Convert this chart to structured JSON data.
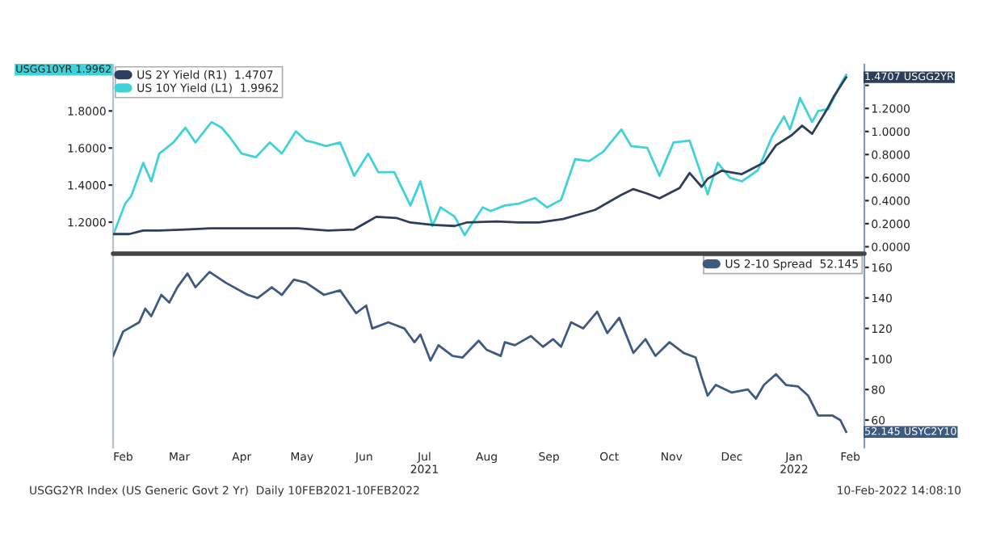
{
  "chart_data": [
    {
      "type": "line",
      "xlim": [
        "2021-02-10",
        "2022-02-19"
      ],
      "ylim": [
        1.03,
        2.05
      ],
      "y2lim": [
        -0.06,
        1.58
      ],
      "tick_labels": "y",
      "legend": "top left",
      "annotations": [
        "USGG10YR 1.9962"
      ],
      "yticks": [
        {
          "value": 1.2,
          "label": "1.2000"
        },
        {
          "value": 1.4,
          "label": "1.4000"
        },
        {
          "value": 1.6,
          "label": "1.6000"
        },
        {
          "value": 1.8,
          "label": "1.8000"
        }
      ],
      "y2ticks": [
        {
          "value": 0,
          "label": "0.0000"
        },
        {
          "value": 0.2,
          "label": "0.2000"
        },
        {
          "value": 0.4,
          "label": "0.4000"
        },
        {
          "value": 0.6,
          "label": "0.6000"
        },
        {
          "value": 0.8,
          "label": "0.8000"
        },
        {
          "value": 1.0,
          "label": "1.0000"
        },
        {
          "value": 1.2,
          "label": "1.2000"
        },
        {
          "value": 1.4,
          "label": null
        }
      ],
      "series": [
        {
          "name": "US 2Y Yield (R1)  1.4707",
          "color": "#2b3f5c",
          "axis": "y2",
          "x": [
            "2021-02-10",
            "2021-02-18",
            "2021-02-25",
            "2021-03-05",
            "2021-03-18",
            "2021-03-31",
            "2021-04-15",
            "2021-04-30",
            "2021-05-13",
            "2021-05-28",
            "2021-06-10",
            "2021-06-16",
            "2021-06-21",
            "2021-07-01",
            "2021-07-08",
            "2021-07-19",
            "2021-07-30",
            "2021-08-05",
            "2021-08-20",
            "2021-08-31",
            "2021-09-10",
            "2021-09-22",
            "2021-09-30",
            "2021-10-08",
            "2021-10-21",
            "2021-10-27",
            "2021-11-03",
            "2021-11-09",
            "2021-11-19",
            "2021-11-24",
            "2021-11-30",
            "2021-12-03",
            "2021-12-10",
            "2021-12-20",
            "2021-12-31",
            "2022-01-06",
            "2022-01-14",
            "2022-01-19",
            "2022-01-24",
            "2022-01-31",
            "2022-02-04",
            "2022-02-10"
          ],
          "values": [
            0.11,
            0.11,
            0.14,
            0.14,
            0.15,
            0.16,
            0.16,
            0.16,
            0.16,
            0.14,
            0.15,
            0.21,
            0.26,
            0.25,
            0.21,
            0.19,
            0.18,
            0.21,
            0.22,
            0.21,
            0.21,
            0.24,
            0.28,
            0.32,
            0.45,
            0.5,
            0.46,
            0.42,
            0.51,
            0.64,
            0.52,
            0.59,
            0.66,
            0.63,
            0.73,
            0.88,
            0.97,
            1.05,
            0.98,
            1.18,
            1.31,
            1.4707
          ],
          "value_labels": [
            null,
            null,
            null,
            null,
            null,
            null,
            null,
            null,
            null,
            null,
            null,
            null,
            null,
            null,
            null,
            null,
            null,
            null,
            null,
            null,
            null,
            null,
            null,
            null,
            null,
            null,
            null,
            null,
            null,
            null,
            null,
            null,
            null,
            null,
            null,
            null,
            null,
            null,
            null,
            null,
            null,
            "1.4707 USGG2YR"
          ]
        },
        {
          "name": "US 10Y Yield (L1)  1.9962",
          "color": "#3fd3d9",
          "x": [
            "2021-02-10",
            "2021-02-16",
            "2021-02-19",
            "2021-02-25",
            "2021-03-01",
            "2021-03-05",
            "2021-03-12",
            "2021-03-18",
            "2021-03-23",
            "2021-03-31",
            "2021-04-05",
            "2021-04-09",
            "2021-04-15",
            "2021-04-22",
            "2021-04-29",
            "2021-05-05",
            "2021-05-12",
            "2021-05-17",
            "2021-05-21",
            "2021-05-27",
            "2021-06-03",
            "2021-06-10",
            "2021-06-17",
            "2021-06-22",
            "2021-06-30",
            "2021-07-08",
            "2021-07-13",
            "2021-07-19",
            "2021-07-23",
            "2021-07-30",
            "2021-08-04",
            "2021-08-13",
            "2021-08-17",
            "2021-08-24",
            "2021-08-31",
            "2021-09-08",
            "2021-09-14",
            "2021-09-21",
            "2021-09-28",
            "2021-10-05",
            "2021-10-12",
            "2021-10-21",
            "2021-10-26",
            "2021-11-03",
            "2021-11-09",
            "2021-11-16",
            "2021-11-24",
            "2021-11-30",
            "2021-12-03",
            "2021-12-08",
            "2021-12-14",
            "2021-12-20",
            "2021-12-28",
            "2022-01-04",
            "2022-01-10",
            "2022-01-13",
            "2022-01-18",
            "2022-01-24",
            "2022-01-27",
            "2022-02-01",
            "2022-02-08",
            "2022-02-10"
          ],
          "values": [
            1.13,
            1.3,
            1.34,
            1.52,
            1.42,
            1.57,
            1.63,
            1.71,
            1.63,
            1.74,
            1.71,
            1.66,
            1.57,
            1.55,
            1.63,
            1.57,
            1.69,
            1.64,
            1.63,
            1.61,
            1.63,
            1.45,
            1.57,
            1.47,
            1.47,
            1.29,
            1.42,
            1.18,
            1.28,
            1.23,
            1.13,
            1.28,
            1.26,
            1.29,
            1.3,
            1.33,
            1.28,
            1.32,
            1.54,
            1.53,
            1.58,
            1.7,
            1.61,
            1.6,
            1.45,
            1.63,
            1.64,
            1.45,
            1.35,
            1.52,
            1.44,
            1.42,
            1.48,
            1.66,
            1.77,
            1.7,
            1.87,
            1.74,
            1.8,
            1.81,
            1.96,
            1.9962
          ],
          "value_labels": [
            null,
            null,
            null,
            null,
            null,
            null,
            null,
            null,
            null,
            null,
            null,
            null,
            null,
            null,
            null,
            null,
            null,
            null,
            null,
            null,
            null,
            null,
            null,
            null,
            null,
            null,
            null,
            null,
            null,
            null,
            null,
            null,
            null,
            null,
            null,
            null,
            null,
            null,
            null,
            null,
            null,
            null,
            null,
            null,
            null,
            null,
            null,
            null,
            null,
            null,
            null,
            null,
            null,
            null,
            null,
            null,
            null,
            null,
            null,
            null,
            null,
            null
          ]
        }
      ]
    },
    {
      "type": "line",
      "xlim": [
        "2021-02-10",
        "2022-02-19"
      ],
      "y2lim": [
        42,
        169
      ],
      "legend": "top right",
      "xticks": [
        {
          "value": "2021-02-15",
          "label": "Feb"
        },
        {
          "value": "2021-03-15",
          "label": "Mar"
        },
        {
          "value": "2021-04-15",
          "label": "Apr"
        },
        {
          "value": "2021-05-15",
          "label": "May"
        },
        {
          "value": "2021-06-15",
          "label": "Jun"
        },
        {
          "value": "2021-07-15",
          "label": "Jul\n2021"
        },
        {
          "value": "2021-08-15",
          "label": "Aug"
        },
        {
          "value": "2021-09-15",
          "label": "Sep"
        },
        {
          "value": "2021-10-15",
          "label": "Oct"
        },
        {
          "value": "2021-11-15",
          "label": "Nov"
        },
        {
          "value": "2021-12-15",
          "label": "Dec"
        },
        {
          "value": "2022-01-15",
          "label": "Jan\n2022"
        },
        {
          "value": "2022-02-12",
          "label": "Feb"
        }
      ],
      "y2ticks": [
        60,
        80,
        100,
        120,
        140,
        160
      ],
      "annotations": [
        "USGG2YR Index (US Generic Govt 2 Yr)  Daily 10FEB2021-10FEB2022",
        "10-Feb-2022 14:08:10"
      ],
      "series": [
        {
          "name": "US 2-10 Spread  52.145",
          "color": "#3d5a80",
          "axis": "y2",
          "x": [
            "2021-02-10",
            "2021-02-15",
            "2021-02-23",
            "2021-02-26",
            "2021-03-01",
            "2021-03-06",
            "2021-03-10",
            "2021-03-14",
            "2021-03-19",
            "2021-03-23",
            "2021-03-30",
            "2021-04-07",
            "2021-04-18",
            "2021-04-23",
            "2021-04-30",
            "2021-05-05",
            "2021-05-11",
            "2021-05-17",
            "2021-05-26",
            "2021-06-03",
            "2021-06-11",
            "2021-06-16",
            "2021-06-19",
            "2021-06-27",
            "2021-07-05",
            "2021-07-10",
            "2021-07-13",
            "2021-07-18",
            "2021-07-22",
            "2021-07-29",
            "2021-08-03",
            "2021-08-11",
            "2021-08-15",
            "2021-08-22",
            "2021-08-24",
            "2021-08-29",
            "2021-09-06",
            "2021-09-12",
            "2021-09-17",
            "2021-09-21",
            "2021-09-26",
            "2021-10-02",
            "2021-10-09",
            "2021-10-14",
            "2021-10-20",
            "2021-10-27",
            "2021-11-02",
            "2021-11-07",
            "2021-11-14",
            "2021-11-21",
            "2021-11-27",
            "2021-11-30",
            "2021-12-03",
            "2021-12-07",
            "2021-12-15",
            "2021-12-23",
            "2021-12-27",
            "2021-12-31",
            "2022-01-06",
            "2022-01-11",
            "2022-01-17",
            "2022-01-22",
            "2022-01-27",
            "2022-02-03",
            "2022-02-07",
            "2022-02-10"
          ],
          "values": [
            102,
            118,
            124,
            133,
            128,
            142,
            137,
            147,
            156,
            147,
            157,
            150,
            142,
            140,
            147,
            142,
            152,
            150,
            142,
            145,
            130,
            135,
            120,
            124,
            120,
            111,
            116,
            99,
            109,
            102,
            101,
            112,
            106,
            102,
            111,
            109,
            115,
            108,
            113,
            108,
            124,
            120,
            131,
            117,
            127,
            104,
            113,
            102,
            111,
            104,
            101,
            88,
            76,
            83,
            78,
            80,
            74,
            83,
            90,
            83,
            82,
            76,
            63,
            63,
            60,
            52.145
          ],
          "value_labels": [
            null,
            null,
            null,
            null,
            null,
            null,
            null,
            null,
            null,
            null,
            null,
            null,
            null,
            null,
            null,
            null,
            null,
            null,
            null,
            null,
            null,
            null,
            null,
            null,
            null,
            null,
            null,
            null,
            null,
            null,
            null,
            null,
            null,
            null,
            null,
            null,
            null,
            null,
            null,
            null,
            null,
            null,
            null,
            null,
            null,
            null,
            null,
            null,
            null,
            null,
            null,
            null,
            null,
            null,
            null,
            null,
            null,
            null,
            null,
            null,
            null,
            null,
            null,
            null,
            null,
            "52.145 USYC2Y10"
          ]
        }
      ]
    }
  ]
}
